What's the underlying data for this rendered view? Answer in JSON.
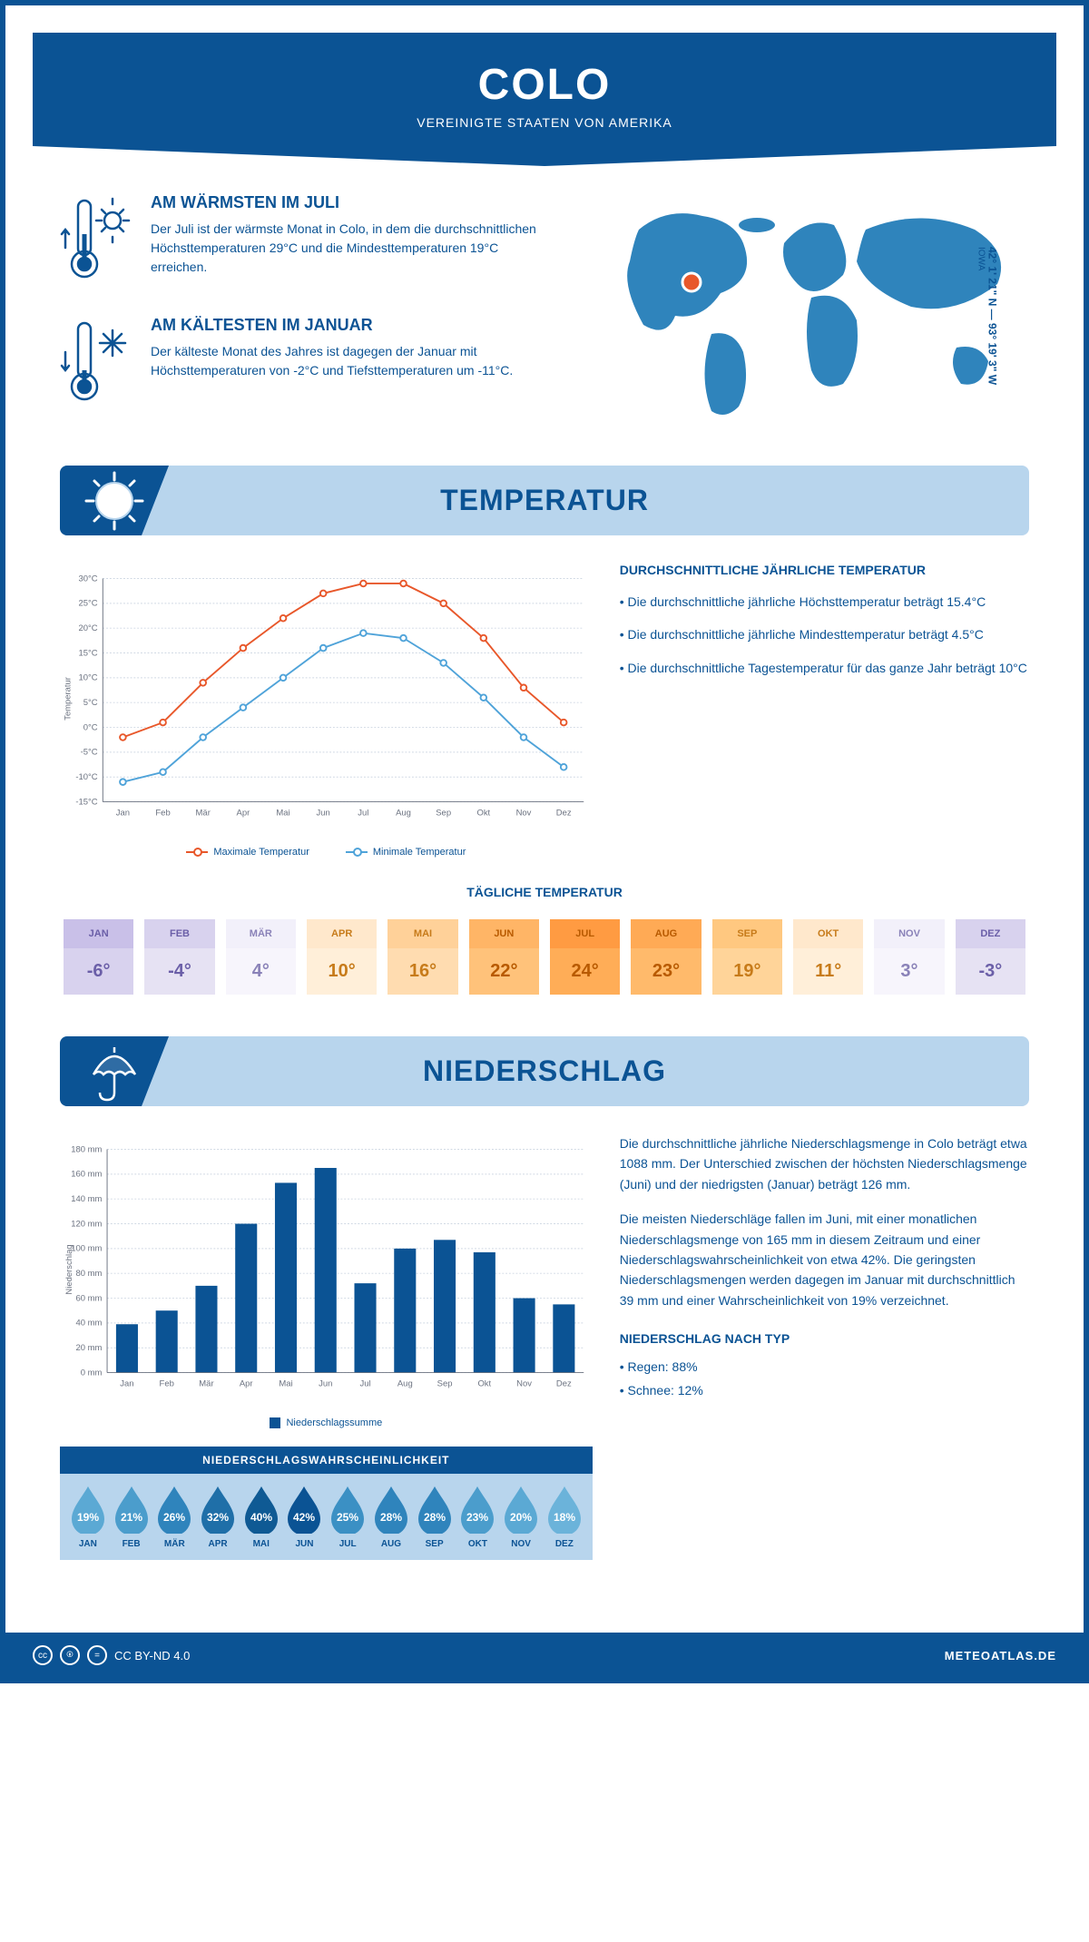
{
  "header": {
    "title": "COLO",
    "subtitle": "VEREINIGTE STAATEN VON AMERIKA"
  },
  "location": {
    "coords": "42° 1' 21\" N — 93° 19' 3\" W",
    "state": "IOWA",
    "marker_color": "#e8572a"
  },
  "intro": {
    "warm": {
      "heading": "AM WÄRMSTEN IM JULI",
      "text": "Der Juli ist der wärmste Monat in Colo, in dem die durchschnittlichen Höchsttemperaturen 29°C und die Mindesttemperaturen 19°C erreichen."
    },
    "cold": {
      "heading": "AM KÄLTESTEN IM JANUAR",
      "text": "Der kälteste Monat des Jahres ist dagegen der Januar mit Höchsttemperaturen von -2°C und Tiefsttemperaturen um -11°C."
    }
  },
  "sections": {
    "temperature": "TEMPERATUR",
    "precipitation": "NIEDERSCHLAG"
  },
  "temp_chart": {
    "type": "line",
    "months": [
      "Jan",
      "Feb",
      "Mär",
      "Apr",
      "Mai",
      "Jun",
      "Jul",
      "Aug",
      "Sep",
      "Okt",
      "Nov",
      "Dez"
    ],
    "max_series": [
      -2,
      1,
      9,
      16,
      22,
      27,
      29,
      29,
      25,
      18,
      8,
      1
    ],
    "min_series": [
      -11,
      -9,
      -2,
      4,
      10,
      16,
      19,
      18,
      13,
      6,
      -2,
      -8
    ],
    "max_color": "#e8572a",
    "min_color": "#4fa3d9",
    "grid_color": "#cfd8e3",
    "axis_color": "#6b7280",
    "ylim": [
      -15,
      30
    ],
    "ytick_step": 5,
    "ylabel": "Temperatur",
    "legend_max": "Maximale Temperatur",
    "legend_min": "Minimale Temperatur"
  },
  "temp_desc": {
    "heading": "DURCHSCHNITTLICHE JÄHRLICHE TEMPERATUR",
    "line1": "• Die durchschnittliche jährliche Höchsttemperatur beträgt 15.4°C",
    "line2": "• Die durchschnittliche jährliche Mindesttemperatur beträgt 4.5°C",
    "line3": "• Die durchschnittliche Tagestemperatur für das ganze Jahr beträgt 10°C"
  },
  "daily_temp": {
    "heading": "TÄGLICHE TEMPERATUR",
    "months": [
      "JAN",
      "FEB",
      "MÄR",
      "APR",
      "MAI",
      "JUN",
      "JUL",
      "AUG",
      "SEP",
      "OKT",
      "NOV",
      "DEZ"
    ],
    "values": [
      "-6°",
      "-4°",
      "4°",
      "10°",
      "16°",
      "22°",
      "24°",
      "23°",
      "19°",
      "11°",
      "3°",
      "-3°"
    ],
    "header_colors": [
      "#c9c0e8",
      "#d8d2ee",
      "#f2f0fa",
      "#ffe8cc",
      "#ffd199",
      "#ffb566",
      "#ff9b42",
      "#ffaa55",
      "#ffc880",
      "#ffe8cc",
      "#f2f0fa",
      "#d8d2ee"
    ],
    "value_colors": [
      "#d8d2ee",
      "#e6e2f3",
      "#f7f5fc",
      "#ffefd9",
      "#ffdcb0",
      "#ffc27a",
      "#ffad57",
      "#ffba6b",
      "#ffd499",
      "#ffefd9",
      "#f7f5fc",
      "#e6e2f3"
    ],
    "text_colors": [
      "#6b5fa8",
      "#6b5fa8",
      "#8a82b8",
      "#c77b1a",
      "#c77b1a",
      "#b85a00",
      "#b85a00",
      "#b85a00",
      "#c77b1a",
      "#c77b1a",
      "#8a82b8",
      "#6b5fa8"
    ]
  },
  "precip_chart": {
    "type": "bar",
    "months": [
      "Jan",
      "Feb",
      "Mär",
      "Apr",
      "Mai",
      "Jun",
      "Jul",
      "Aug",
      "Sep",
      "Okt",
      "Nov",
      "Dez"
    ],
    "values": [
      39,
      50,
      70,
      120,
      153,
      165,
      72,
      100,
      107,
      97,
      60,
      55
    ],
    "bar_color": "#0b5394",
    "grid_color": "#cfd8e3",
    "axis_color": "#6b7280",
    "ylim": [
      0,
      180
    ],
    "ytick_step": 20,
    "ylabel": "Niederschlag",
    "legend": "Niederschlagssumme"
  },
  "precip_text": {
    "p1": "Die durchschnittliche jährliche Niederschlagsmenge in Colo beträgt etwa 1088 mm. Der Unterschied zwischen der höchsten Niederschlagsmenge (Juni) und der niedrigsten (Januar) beträgt 126 mm.",
    "p2": "Die meisten Niederschläge fallen im Juni, mit einer monatlichen Niederschlagsmenge von 165 mm in diesem Zeitraum und einer Niederschlagswahrscheinlichkeit von etwa 42%. Die geringsten Niederschlagsmengen werden dagegen im Januar mit durchschnittlich 39 mm und einer Wahrscheinlichkeit von 19% verzeichnet.",
    "type_heading": "NIEDERSCHLAG NACH TYP",
    "type1": "• Regen: 88%",
    "type2": "• Schnee: 12%"
  },
  "precip_prob": {
    "heading": "NIEDERSCHLAGSWAHRSCHEINLICHKEIT",
    "months": [
      "JAN",
      "FEB",
      "MÄR",
      "APR",
      "MAI",
      "JUN",
      "JUL",
      "AUG",
      "SEP",
      "OKT",
      "NOV",
      "DEZ"
    ],
    "values": [
      "19%",
      "21%",
      "26%",
      "32%",
      "40%",
      "42%",
      "25%",
      "28%",
      "28%",
      "23%",
      "20%",
      "18%"
    ],
    "colors": [
      "#5ba9d4",
      "#4b9dcc",
      "#2f84bc",
      "#1f6fa8",
      "#0f5a94",
      "#0b5394",
      "#3b90c4",
      "#2f84bc",
      "#2f84bc",
      "#4b9dcc",
      "#5ba9d4",
      "#6bb3da"
    ]
  },
  "footer": {
    "license": "CC BY-ND 4.0",
    "site": "METEOATLAS.DE"
  },
  "colors": {
    "brand": "#0b5394",
    "brand_light": "#b8d5ed",
    "brand_mid": "#4fa3d9"
  }
}
